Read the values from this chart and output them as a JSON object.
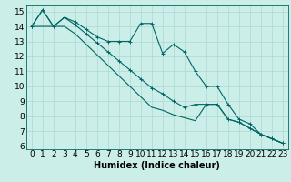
{
  "xlabel": "Humidex (Indice chaleur)",
  "background_color": "#cceee8",
  "grid_color": "#aad8d0",
  "line_color": "#006666",
  "spine_color": "#006666",
  "x_data": [
    0,
    1,
    2,
    3,
    4,
    5,
    6,
    7,
    8,
    9,
    10,
    11,
    12,
    13,
    14,
    15,
    16,
    17,
    18,
    19,
    20,
    21,
    22,
    23
  ],
  "line1": [
    14.0,
    15.1,
    14.0,
    14.6,
    14.3,
    13.8,
    13.3,
    13.0,
    13.0,
    13.0,
    14.2,
    14.2,
    12.2,
    12.8,
    12.3,
    11.0,
    10.0,
    10.0,
    8.8,
    7.8,
    7.5,
    6.8,
    6.5,
    6.2
  ],
  "line2": [
    14.0,
    15.1,
    14.0,
    14.6,
    14.1,
    13.5,
    12.9,
    12.3,
    11.7,
    11.1,
    10.5,
    9.9,
    9.5,
    9.0,
    8.6,
    8.8,
    8.8,
    8.8,
    7.8,
    7.6,
    7.2,
    6.8,
    6.5,
    6.2
  ],
  "line3": [
    14.0,
    14.0,
    14.0,
    14.0,
    13.5,
    12.8,
    12.1,
    11.4,
    10.7,
    10.0,
    9.3,
    8.6,
    8.4,
    8.1,
    7.9,
    7.7,
    8.8,
    8.8,
    7.8,
    7.6,
    7.2,
    6.8,
    6.5,
    6.2
  ],
  "ylim_min": 5.8,
  "ylim_max": 15.4,
  "xlim_min": -0.5,
  "xlim_max": 23.5,
  "yticks": [
    6,
    7,
    8,
    9,
    10,
    11,
    12,
    13,
    14,
    15
  ],
  "xlabel_fontsize": 7,
  "tick_fontsize": 6.5
}
